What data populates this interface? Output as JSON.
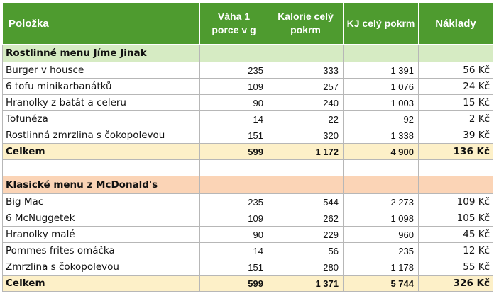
{
  "headers": {
    "item": "Položka",
    "weight": "Váha 1 porce v g",
    "kcal": "Kalorie celý pokrm",
    "kj": "KJ celý pokrm",
    "cost": "Náklady"
  },
  "sections": [
    {
      "title": "Rostlinné menu Jíme Jinak",
      "rows": [
        {
          "name": "Burger v housce",
          "weight": "235",
          "kcal": "333",
          "kj": "1 391",
          "cost": "56 Kč"
        },
        {
          "name": "6 tofu minikarbanátků",
          "weight": "109",
          "kcal": "257",
          "kj": "1 076",
          "cost": "24 Kč"
        },
        {
          "name": "Hranolky z batát a celeru",
          "weight": "90",
          "kcal": "240",
          "kj": "1 003",
          "cost": "15 Kč"
        },
        {
          "name": "Tofunéza",
          "weight": "14",
          "kcal": "22",
          "kj": "92",
          "cost": "2 Kč"
        },
        {
          "name": "Rostlinná zmrzlina s čokopolevou",
          "weight": "151",
          "kcal": "320",
          "kj": "1 338",
          "cost": "39 Kč"
        }
      ],
      "total": {
        "label": "Celkem",
        "weight": "599",
        "kcal": "1 172",
        "kj": "4 900",
        "cost": "136 Kč"
      }
    },
    {
      "title": "Klasické menu z McDonald's",
      "rows": [
        {
          "name": "Big Mac",
          "weight": "235",
          "kcal": "544",
          "kj": "2 273",
          "cost": "109 Kč"
        },
        {
          "name": "6 McNuggetek",
          "weight": "109",
          "kcal": "262",
          "kj": "1 098",
          "cost": "105 Kč"
        },
        {
          "name": "Hranolky malé",
          "weight": "90",
          "kcal": "229",
          "kj": "960",
          "cost": "45 Kč"
        },
        {
          "name": "Pommes frites omáčka",
          "weight": "14",
          "kcal": "56",
          "kj": "235",
          "cost": "12 Kč"
        },
        {
          "name": "Zmrzlina s čokopolevou",
          "weight": "151",
          "kcal": "280",
          "kj": "1 178",
          "cost": "55 Kč"
        }
      ],
      "total": {
        "label": "Celkem",
        "weight": "599",
        "kcal": "1 371",
        "kj": "5 744",
        "cost": "326 Kč"
      }
    }
  ],
  "colors": {
    "header": "#4e9b2f",
    "section1": "#d6ebc3",
    "section2": "#fbd4b6",
    "total": "#fdf0c8"
  }
}
